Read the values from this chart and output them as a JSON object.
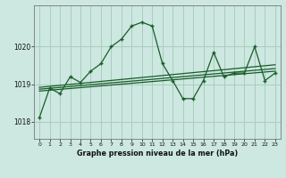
{
  "title": "Graphe pression niveau de la mer (hPa)",
  "bg_color": "#cce8e0",
  "grid_color": "#aaccbf",
  "line_color": "#1a5c2a",
  "ylim": [
    1017.55,
    1021.1
  ],
  "yticks": [
    1018,
    1019,
    1020
  ],
  "xlim": [
    -0.5,
    23.5
  ],
  "xticks": [
    0,
    1,
    2,
    3,
    4,
    5,
    6,
    7,
    8,
    9,
    10,
    11,
    12,
    13,
    14,
    15,
    16,
    17,
    18,
    19,
    20,
    21,
    22,
    23
  ],
  "main_x": [
    0,
    1,
    2,
    3,
    4,
    5,
    6,
    7,
    8,
    9,
    10,
    11,
    12,
    13,
    14,
    15,
    16,
    17,
    18,
    19,
    20,
    21,
    22,
    23
  ],
  "main_y": [
    1018.12,
    1018.9,
    1018.75,
    1019.2,
    1019.05,
    1019.35,
    1019.55,
    1020.0,
    1020.2,
    1020.55,
    1020.65,
    1020.55,
    1019.55,
    1019.1,
    1018.62,
    1018.62,
    1019.1,
    1019.85,
    1019.2,
    1019.3,
    1019.3,
    1020.0,
    1019.1,
    1019.3
  ],
  "trend1_x": [
    0,
    23
  ],
  "trend1_y": [
    1018.82,
    1019.35
  ],
  "trend2_x": [
    0,
    23
  ],
  "trend2_y": [
    1018.87,
    1019.42
  ],
  "trend3_x": [
    0,
    23
  ],
  "trend3_y": [
    1018.92,
    1019.52
  ]
}
